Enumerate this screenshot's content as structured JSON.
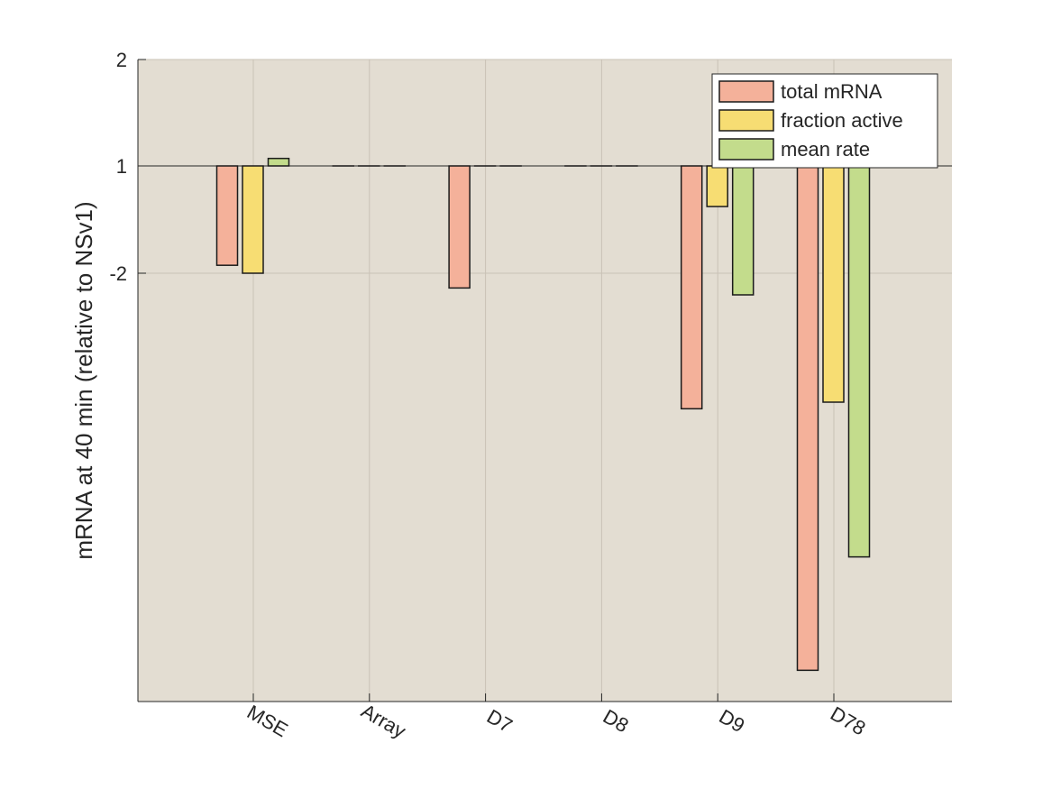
{
  "chart_data": {
    "type": "bar",
    "title": "",
    "xlabel": "",
    "ylabel": "mRNA at 40 min (relative to NSv1)",
    "categories": [
      "MSE",
      "Array",
      "D7",
      "D8",
      "D9",
      "D78"
    ],
    "y_ticks": [
      2,
      1,
      -2
    ],
    "y_tick_labels": [
      "2",
      "1",
      "-2"
    ],
    "y_scale": "log2 (fold change, negative = 1/x)",
    "baseline": 1,
    "ylim": [
      -28,
      2
    ],
    "grid": true,
    "legend_position": "top-right",
    "background_color": "#e3ddd2",
    "series": [
      {
        "name": "total mRNA",
        "color": "#f4b19a",
        "values": [
          -1.9,
          1,
          -2.2,
          1,
          -4.8,
          -26
        ]
      },
      {
        "name": "fraction active",
        "color": "#f7dd73",
        "values": [
          -2,
          1,
          1,
          1,
          -1.3,
          -4.6
        ]
      },
      {
        "name": "mean rate",
        "color": "#c3dc8c",
        "values": [
          1.05,
          1,
          1,
          1,
          -2.3,
          -12.5
        ]
      }
    ]
  }
}
